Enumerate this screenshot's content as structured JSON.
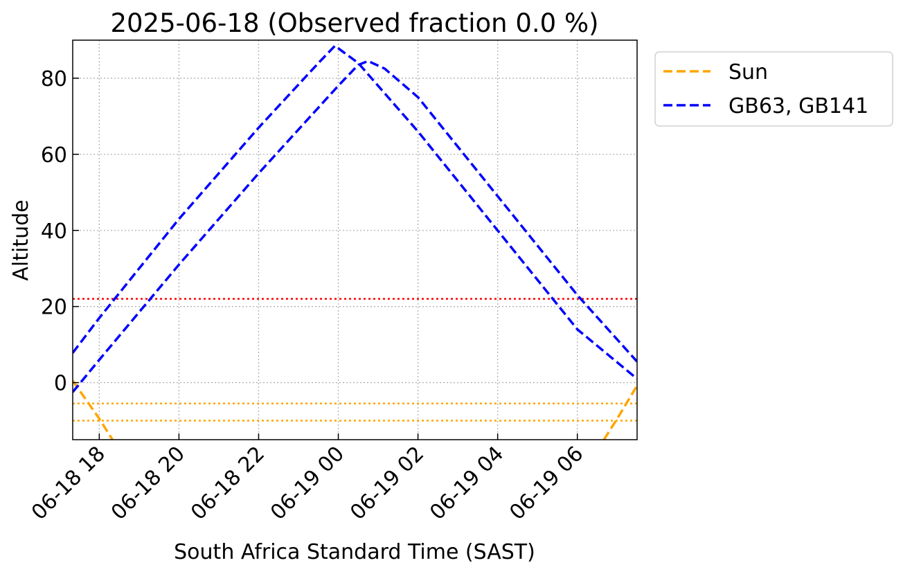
{
  "chart_data": {
    "type": "line",
    "title": "2025-06-18 (Observed fraction 0.0 %)",
    "xlabel": "South Africa Standard Time (SAST)",
    "ylabel": "Altitude",
    "x_unit": "datetime (SAST)",
    "xlim": [
      "2025-06-18 17:20",
      "2025-06-19 07:30"
    ],
    "ylim": [
      -15,
      90
    ],
    "x_ticks": [
      {
        "x": "2025-06-18 18:00",
        "label": "06-18 18"
      },
      {
        "x": "2025-06-18 20:00",
        "label": "06-18 20"
      },
      {
        "x": "2025-06-18 22:00",
        "label": "06-18 22"
      },
      {
        "x": "2025-06-19 00:00",
        "label": "06-19 00"
      },
      {
        "x": "2025-06-19 02:00",
        "label": "06-19 02"
      },
      {
        "x": "2025-06-19 04:00",
        "label": "06-19 04"
      },
      {
        "x": "2025-06-19 06:00",
        "label": "06-19 06"
      }
    ],
    "y_ticks": [
      0,
      20,
      40,
      60,
      80
    ],
    "grid": true,
    "legend": {
      "placement": "outside-top-right",
      "entries": [
        "Sun",
        "GB63, GB141"
      ]
    },
    "series": [
      {
        "name": "Sun",
        "color": "#ffa500",
        "style": "dashed",
        "points": [
          [
            "2025-06-18 17:20",
            0.5
          ],
          [
            "2025-06-18 17:40",
            -4.5
          ],
          [
            "2025-06-18 18:00",
            -9.5
          ],
          [
            "2025-06-18 18:20",
            -15
          ],
          [
            "2025-06-19 06:40",
            -15
          ],
          [
            "2025-06-19 07:00",
            -9.5
          ],
          [
            "2025-06-19 07:30",
            -0.8
          ]
        ],
        "gaps_after": [
          3
        ]
      },
      {
        "name": "GB63, GB141",
        "color": "#0000ff",
        "style": "dashed",
        "points": [
          [
            "2025-06-18 17:20",
            7.8
          ],
          [
            "2025-06-18 18:00",
            17
          ],
          [
            "2025-06-18 20:00",
            43
          ],
          [
            "2025-06-18 22:00",
            67
          ],
          [
            "2025-06-18 23:30",
            84
          ],
          [
            "2025-06-18 23:55",
            88.5
          ],
          [
            "2025-06-19 00:30",
            84
          ],
          [
            "2025-06-19 02:00",
            66
          ],
          [
            "2025-06-19 04:00",
            40
          ],
          [
            "2025-06-19 06:00",
            14
          ],
          [
            "2025-06-19 07:30",
            1
          ]
        ]
      },
      {
        "name": "GB63, GB141",
        "color": "#0000ff",
        "style": "dashed",
        "points": [
          [
            "2025-06-18 17:20",
            -2.5
          ],
          [
            "2025-06-18 18:00",
            6
          ],
          [
            "2025-06-18 20:00",
            31
          ],
          [
            "2025-06-18 22:00",
            55
          ],
          [
            "2025-06-19 00:00",
            78
          ],
          [
            "2025-06-19 00:30",
            83.5
          ],
          [
            "2025-06-19 00:45",
            84.5
          ],
          [
            "2025-06-19 01:10",
            82.5
          ],
          [
            "2025-06-19 02:00",
            75
          ],
          [
            "2025-06-19 04:00",
            49
          ],
          [
            "2025-06-19 06:00",
            23
          ],
          [
            "2025-06-19 07:30",
            5.5
          ]
        ]
      }
    ],
    "reference_lines": [
      {
        "y": 22,
        "color": "#ff0000",
        "style": "dotted"
      },
      {
        "y": -5.5,
        "color": "#ffa500",
        "style": "dotted"
      },
      {
        "y": -10,
        "color": "#ffa500",
        "style": "dotted"
      }
    ]
  }
}
